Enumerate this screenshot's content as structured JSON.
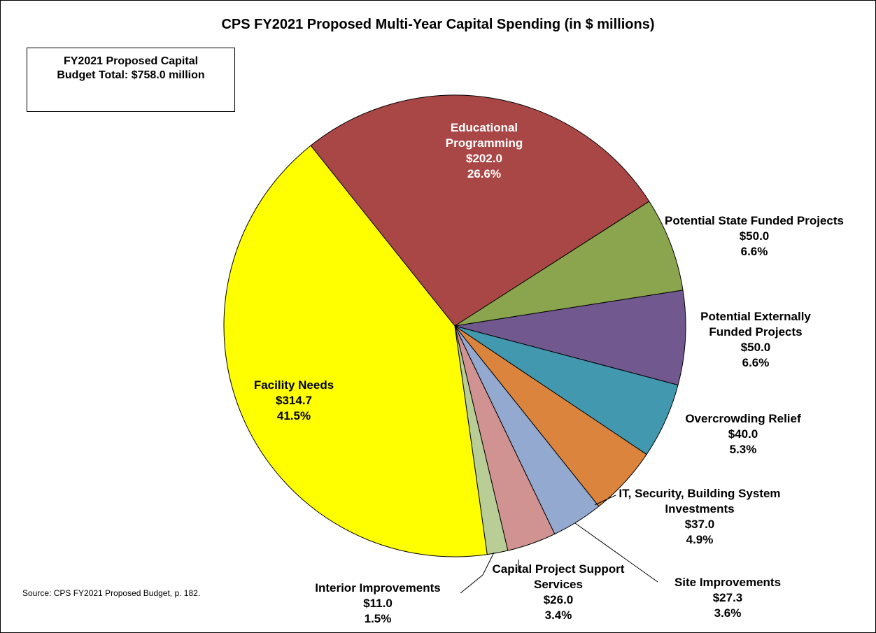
{
  "chart_data": {
    "type": "pie",
    "title": "CPS FY2021 Proposed Multi-Year Capital Spending (in $ millions)",
    "annotation": "FY2021 Proposed Capital Budget Total: $758.0 million",
    "source": "Source: CPS FY2021 Proposed Budget, p. 182.",
    "categories": [
      "Educational Programming",
      "Potential State Funded Projects",
      "Potential Externally Funded Projects",
      "Overcrowding Relief",
      "IT, Security, Building System Investments",
      "Site Improvements",
      "Capital Project Support Services",
      "Interior Improvements",
      "Facility Needs"
    ],
    "values": [
      202.0,
      50.0,
      50.0,
      40.0,
      37.0,
      27.3,
      26.0,
      11.0,
      314.7
    ],
    "value_labels": [
      "$202.0",
      "$50.0",
      "$50.0",
      "$40.0",
      "$37.0",
      "$27.3",
      "$26.0",
      "$11.0",
      "$314.7"
    ],
    "percent_labels": [
      "26.6%",
      "6.6%",
      "6.6%",
      "5.3%",
      "4.9%",
      "3.6%",
      "3.4%",
      "1.5%",
      "41.5%"
    ],
    "colors": [
      "#a94746",
      "#8aa54e",
      "#71588f",
      "#4198af",
      "#db843d",
      "#93a9cf",
      "#d19392",
      "#b9cd96",
      "#ffff00"
    ]
  }
}
